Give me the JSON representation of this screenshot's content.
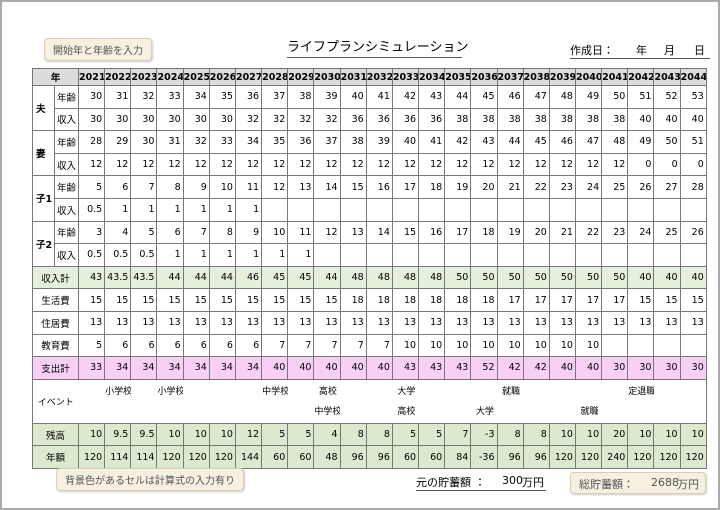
{
  "header": {
    "note": "開始年と年齢を入力",
    "title": "ライフプランシミュレーション",
    "created_label": "作成日：",
    "year_label": "年",
    "month_label": "月",
    "day_label": "日"
  },
  "table": {
    "corner": "年",
    "years": [
      2021,
      2022,
      2023,
      2024,
      2025,
      2026,
      2027,
      2028,
      2029,
      2030,
      2031,
      2032,
      2033,
      2034,
      2035,
      2036,
      2037,
      2038,
      2039,
      2040,
      2041,
      2042,
      2043,
      2044
    ],
    "groups": [
      {
        "person": "夫",
        "rows": [
          {
            "label": "年齢",
            "values": [
              30,
              31,
              32,
              33,
              34,
              35,
              36,
              37,
              38,
              39,
              40,
              41,
              42,
              43,
              44,
              45,
              46,
              47,
              48,
              49,
              50,
              51,
              52,
              53
            ]
          },
          {
            "label": "収入",
            "values": [
              30,
              30,
              30,
              30,
              30,
              30,
              32,
              32,
              32,
              32,
              36,
              36,
              36,
              36,
              38,
              38,
              38,
              38,
              38,
              38,
              38,
              40,
              40,
              40
            ]
          }
        ]
      },
      {
        "person": "妻",
        "rows": [
          {
            "label": "年齢",
            "values": [
              28,
              29,
              30,
              31,
              32,
              33,
              34,
              35,
              36,
              37,
              38,
              39,
              40,
              41,
              42,
              43,
              44,
              45,
              46,
              47,
              48,
              49,
              50,
              51
            ]
          },
          {
            "label": "収入",
            "values": [
              12,
              12,
              12,
              12,
              12,
              12,
              12,
              12,
              12,
              12,
              12,
              12,
              12,
              12,
              12,
              12,
              12,
              12,
              12,
              12,
              12,
              0,
              0,
              0
            ]
          }
        ]
      },
      {
        "person": "子1",
        "rows": [
          {
            "label": "年齢",
            "values": [
              5,
              6,
              7,
              8,
              9,
              10,
              11,
              12,
              13,
              14,
              15,
              16,
              17,
              18,
              19,
              20,
              21,
              22,
              23,
              24,
              25,
              26,
              27,
              28
            ]
          },
          {
            "label": "収入",
            "values": [
              0.5,
              1,
              1,
              1,
              1,
              1,
              1,
              null,
              null,
              null,
              null,
              null,
              null,
              null,
              null,
              null,
              null,
              null,
              null,
              null,
              null,
              null,
              null,
              null
            ]
          }
        ]
      },
      {
        "person": "子2",
        "rows": [
          {
            "label": "年齢",
            "values": [
              3,
              4,
              5,
              6,
              7,
              8,
              9,
              10,
              11,
              12,
              13,
              14,
              15,
              16,
              17,
              18,
              19,
              20,
              21,
              22,
              23,
              24,
              25,
              26
            ]
          },
          {
            "label": "収入",
            "values": [
              0.5,
              0.5,
              0.5,
              1,
              1,
              1,
              1,
              1,
              1,
              null,
              null,
              null,
              null,
              null,
              null,
              null,
              null,
              null,
              null,
              null,
              null,
              null,
              null,
              null
            ]
          }
        ]
      }
    ],
    "summary": [
      {
        "label": "収入計",
        "values": [
          43,
          43.5,
          43.5,
          44,
          44,
          44,
          46,
          45,
          45,
          44,
          48,
          48,
          48,
          48,
          50,
          50,
          50,
          50,
          50,
          50,
          50,
          40,
          40,
          40
        ]
      },
      {
        "label": "生活費",
        "values": [
          15,
          15,
          15,
          15,
          15,
          15,
          15,
          15,
          15,
          15,
          18,
          18,
          18,
          18,
          18,
          18,
          17,
          17,
          17,
          17,
          17,
          15,
          15,
          15
        ]
      },
      {
        "label": "住居費",
        "values": [
          13,
          13,
          13,
          13,
          13,
          13,
          13,
          13,
          13,
          13,
          13,
          13,
          13,
          13,
          13,
          13,
          13,
          13,
          13,
          13,
          13,
          13,
          13,
          13
        ]
      },
      {
        "label": "教育費",
        "values": [
          5,
          6,
          6,
          6,
          6,
          6,
          6,
          7,
          7,
          7,
          7,
          7,
          10,
          10,
          10,
          10,
          10,
          10,
          10,
          10,
          null,
          null,
          null,
          null
        ]
      },
      {
        "label": "支出計",
        "values": [
          33,
          34,
          34,
          34,
          34,
          34,
          34,
          40,
          40,
          40,
          40,
          40,
          43,
          43,
          43,
          52,
          42,
          42,
          40,
          40,
          30,
          30,
          30,
          30
        ]
      }
    ],
    "events": {
      "label": "イベント",
      "line1": [
        null,
        "小学校",
        null,
        "小学校",
        null,
        null,
        null,
        "中学校",
        null,
        "高校",
        null,
        null,
        "大学",
        null,
        null,
        null,
        "就職",
        null,
        null,
        null,
        null,
        "定退職",
        null,
        null
      ],
      "line2": [
        null,
        null,
        null,
        null,
        null,
        null,
        null,
        null,
        null,
        "中学校",
        null,
        null,
        "高校",
        null,
        null,
        "大学",
        null,
        null,
        null,
        "就職",
        null,
        null,
        null,
        null
      ]
    },
    "totals": [
      {
        "label": "残高",
        "values": [
          10,
          9.5,
          9.5,
          10,
          10,
          10,
          12,
          5,
          5,
          4,
          8,
          8,
          5,
          5,
          7,
          -3,
          8,
          8,
          10,
          10,
          20,
          10,
          10,
          10
        ]
      },
      {
        "label": "年額",
        "values": [
          120,
          114,
          114,
          120,
          120,
          120,
          144,
          60,
          60,
          48,
          96,
          96,
          60,
          60,
          84,
          -36,
          96,
          96,
          120,
          120,
          240,
          120,
          120,
          120
        ]
      }
    ]
  },
  "footer": {
    "note": "背景色があるセルは計算式の入力有り",
    "savings_label": "元の貯蓄額 ：",
    "savings_value": 300,
    "savings_unit": "万円",
    "total_label": "総貯蓄額：",
    "total_value": 2688,
    "total_unit": "万円"
  }
}
